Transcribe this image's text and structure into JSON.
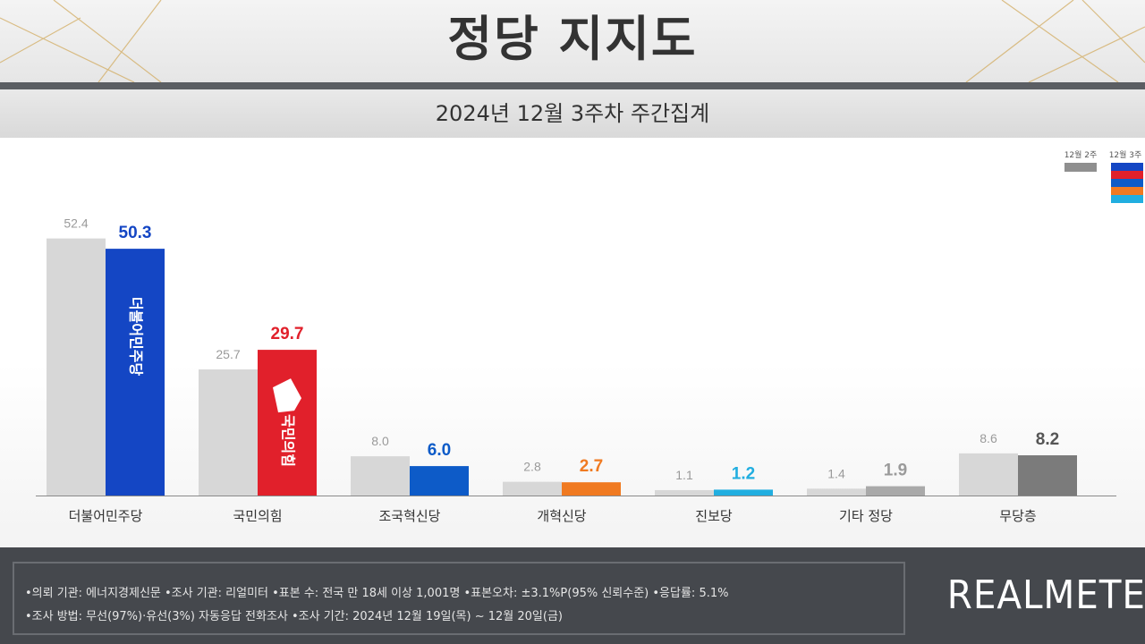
{
  "title": "정당 지지도",
  "subtitle": "2024년 12월 3주차 주간집계",
  "legend": {
    "prev": "12월 2주",
    "curr": "12월 3주"
  },
  "chart_data": {
    "type": "bar",
    "categories": [
      "더불어민주당",
      "국민의힘",
      "조국혁신당",
      "개혁신당",
      "진보당",
      "기타 정당",
      "무당층"
    ],
    "series": [
      {
        "name": "12월 2주",
        "values": [
          52.4,
          25.7,
          8.0,
          2.8,
          1.1,
          1.4,
          8.6
        ]
      },
      {
        "name": "12월 3주",
        "values": [
          50.3,
          29.7,
          6.0,
          2.7,
          1.2,
          1.9,
          8.2
        ]
      }
    ],
    "prev_labels": [
      "52.4",
      "25.7",
      "8.0",
      "2.8",
      "1.1",
      "1.4",
      "8.6"
    ],
    "curr_labels": [
      "50.3",
      "29.7",
      "6.0",
      "2.7",
      "1.2",
      "1.9",
      "8.2"
    ],
    "ylim": [
      0,
      55
    ],
    "colors": {
      "prev": "#d7d7d7",
      "curr": [
        "#1446c4",
        "#e1202b",
        "#0d5bc8",
        "#f07a21",
        "#21aee0",
        "#a9a9a9",
        "#7b7b7b"
      ],
      "curr_label": [
        "#1446c4",
        "#e1202b",
        "#0d5bc8",
        "#f07a21",
        "#21aee0",
        "#9a9a9a",
        "#555555"
      ],
      "legend_stripes": [
        "#1446c4",
        "#e1202b",
        "#0d5bc8",
        "#f07a21",
        "#21aee0"
      ]
    },
    "bar_logos": {
      "더불어민주당": "더불어민주당",
      "국민의힘": "국민의힘"
    }
  },
  "footer": {
    "line1": "•의뢰 기관: 에너지경제신문  •조사 기관: 리얼미터 •표본 수: 전국 만 18세 이상 1,001명 •표본오차: ±3.1%P(95% 신뢰수준) •응답률: 5.1%",
    "line2": "•조사 방법: 무선(97%)·유선(3%) 자동응답 전화조사 •조사 기간: 2024년 12월 19일(목) ~ 12월 20일(금)",
    "logo": "REALMETER"
  }
}
